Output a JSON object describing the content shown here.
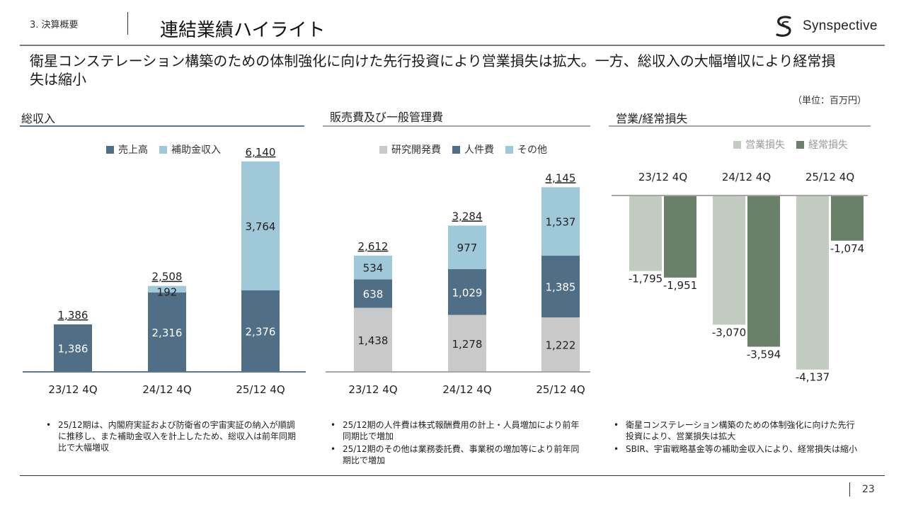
{
  "header": {
    "section": "3. 決算概要",
    "title": "連結業績ハイライト",
    "logo_text": "Synspective"
  },
  "headline": "衛星コンステレーション構築のための体制強化に向けた先行投資により営業損失は拡大。一方、総収入の大幅増収により経常損失は縮小",
  "unit": "（単位：百万円）",
  "colors": {
    "sales": "#506e85",
    "subsidy": "#9fc8d9",
    "rnd": "#c9c9c9",
    "personnel": "#506e85",
    "other": "#9fc8d9",
    "operating_loss": "#c2cbc0",
    "ordinary_loss": "#6b8069",
    "rule_blue": "#5a7a93",
    "rule_gray": "#a6a6a6"
  },
  "panels": {
    "revenue": {
      "title": "総収入",
      "legend": [
        "売上高",
        "補助金収入"
      ],
      "notes": [
        "25/12期は、内閣府実証および防衛省の宇宙実証の納入が順調に推移し、また補助金収入を計上したため、総収入は前年同期比で大幅増収"
      ]
    },
    "sga": {
      "title": "販売費及び一般管理費",
      "legend": [
        "研究開発費",
        "人件費",
        "その他"
      ],
      "notes": [
        "25/12期の人件費は株式報酬費用の計上・人員増加により前年同期比で増加",
        "25/12期のその他は業務委託費、事業税の増加等により前年同期比で増加"
      ]
    },
    "loss": {
      "title": "営業/経常損失",
      "legend": [
        "営業損失",
        "経常損失"
      ],
      "notes": [
        "衛星コンステレーション構築のための体制強化に向けた先行投資により、営業損失は拡大",
        "SBIR、宇宙戦略基金等の補助金収入により、経常損失は縮小"
      ]
    }
  },
  "chart_data": [
    {
      "type": "bar",
      "stacked": true,
      "title": "総収入",
      "categories": [
        "23/12 4Q",
        "24/12 4Q",
        "25/12 4Q"
      ],
      "series": [
        {
          "name": "売上高",
          "values": [
            1386,
            2316,
            2376
          ],
          "labels": [
            "1,386",
            "2,316",
            "2,376"
          ]
        },
        {
          "name": "補助金収入",
          "values": [
            0,
            192,
            3764
          ],
          "labels": [
            "",
            "192",
            "3,764"
          ]
        }
      ],
      "totals": [
        1386,
        2508,
        6140
      ],
      "total_labels": [
        "1,386",
        "2,508",
        "6,140"
      ]
    },
    {
      "type": "bar",
      "stacked": true,
      "title": "販売費及び一般管理費",
      "categories": [
        "23/12 4Q",
        "24/12 4Q",
        "25/12 4Q"
      ],
      "series": [
        {
          "name": "研究開発費",
          "values": [
            1438,
            1278,
            1222
          ],
          "labels": [
            "1,438",
            "1,278",
            "1,222"
          ]
        },
        {
          "name": "人件費",
          "values": [
            638,
            1029,
            1385
          ],
          "labels": [
            "638",
            "1,029",
            "1,385"
          ]
        },
        {
          "name": "その他",
          "values": [
            534,
            977,
            1537
          ],
          "labels": [
            "534",
            "977",
            "1,537"
          ]
        }
      ],
      "totals": [
        2612,
        3284,
        4145
      ],
      "total_labels": [
        "2,612",
        "3,284",
        "4,145"
      ]
    },
    {
      "type": "bar",
      "title": "営業/経常損失",
      "categories": [
        "23/12 4Q",
        "24/12 4Q",
        "25/12 4Q"
      ],
      "series": [
        {
          "name": "営業損失",
          "values": [
            -1795,
            -3070,
            -4137
          ],
          "labels": [
            "-1,795",
            "-3,070",
            "-4,137"
          ]
        },
        {
          "name": "経常損失",
          "values": [
            -1951,
            -3594,
            -1074
          ],
          "labels": [
            "-1,951",
            "-3,594",
            "-1,074"
          ]
        }
      ]
    }
  ],
  "footer": {
    "page": "23"
  }
}
